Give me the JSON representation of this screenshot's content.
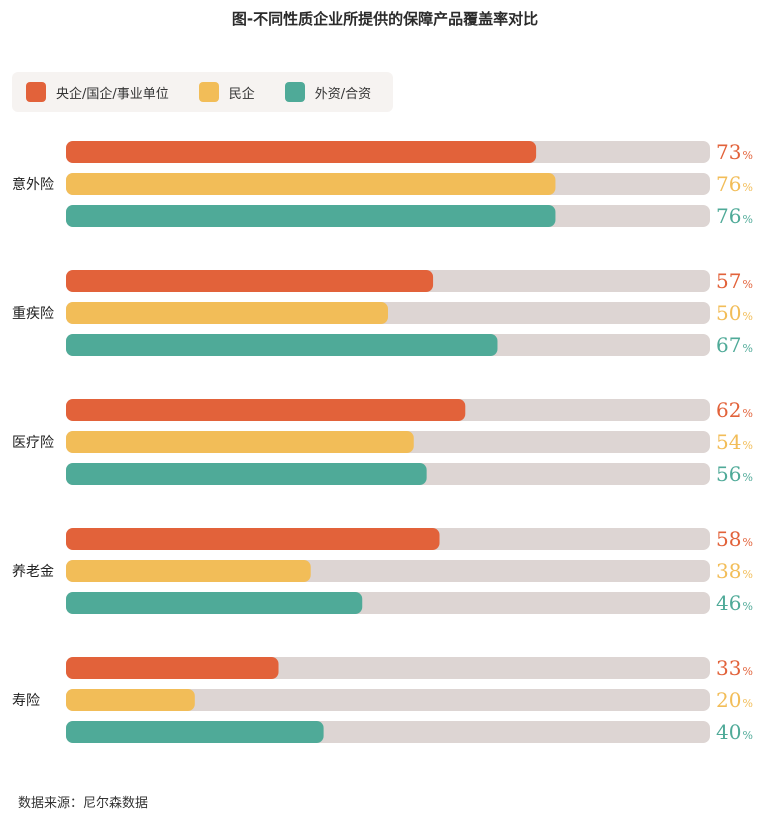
{
  "title": "图-不同性质企业所提供的保障产品覆盖率对比",
  "source": "数据来源：尼尔森数据",
  "colors": {
    "series0": "#e2623a",
    "series1": "#f2bd58",
    "series2": "#4faa98",
    "track": "#ddd5d3"
  },
  "legend": [
    {
      "label": "央企/国企/事业单位",
      "color": "#e2623a"
    },
    {
      "label": "民企",
      "color": "#f2bd58"
    },
    {
      "label": "外资/合资",
      "color": "#4faa98"
    }
  ],
  "chart_data": {
    "type": "bar",
    "orientation": "horizontal",
    "title": "图-不同性质企业所提供的保障产品覆盖率对比",
    "categories": [
      "意外险",
      "重疾险",
      "医疗险",
      "养老金",
      "寿险"
    ],
    "series": [
      {
        "name": "央企/国企/事业单位",
        "values": [
          73,
          57,
          62,
          58,
          33
        ]
      },
      {
        "name": "民企",
        "values": [
          76,
          50,
          54,
          38,
          20
        ]
      },
      {
        "name": "外资/合资",
        "values": [
          76,
          67,
          56,
          46,
          40
        ]
      }
    ],
    "value_suffix": "%",
    "xlim": [
      0,
      100
    ],
    "grid": false,
    "legend_position": "top-left"
  }
}
